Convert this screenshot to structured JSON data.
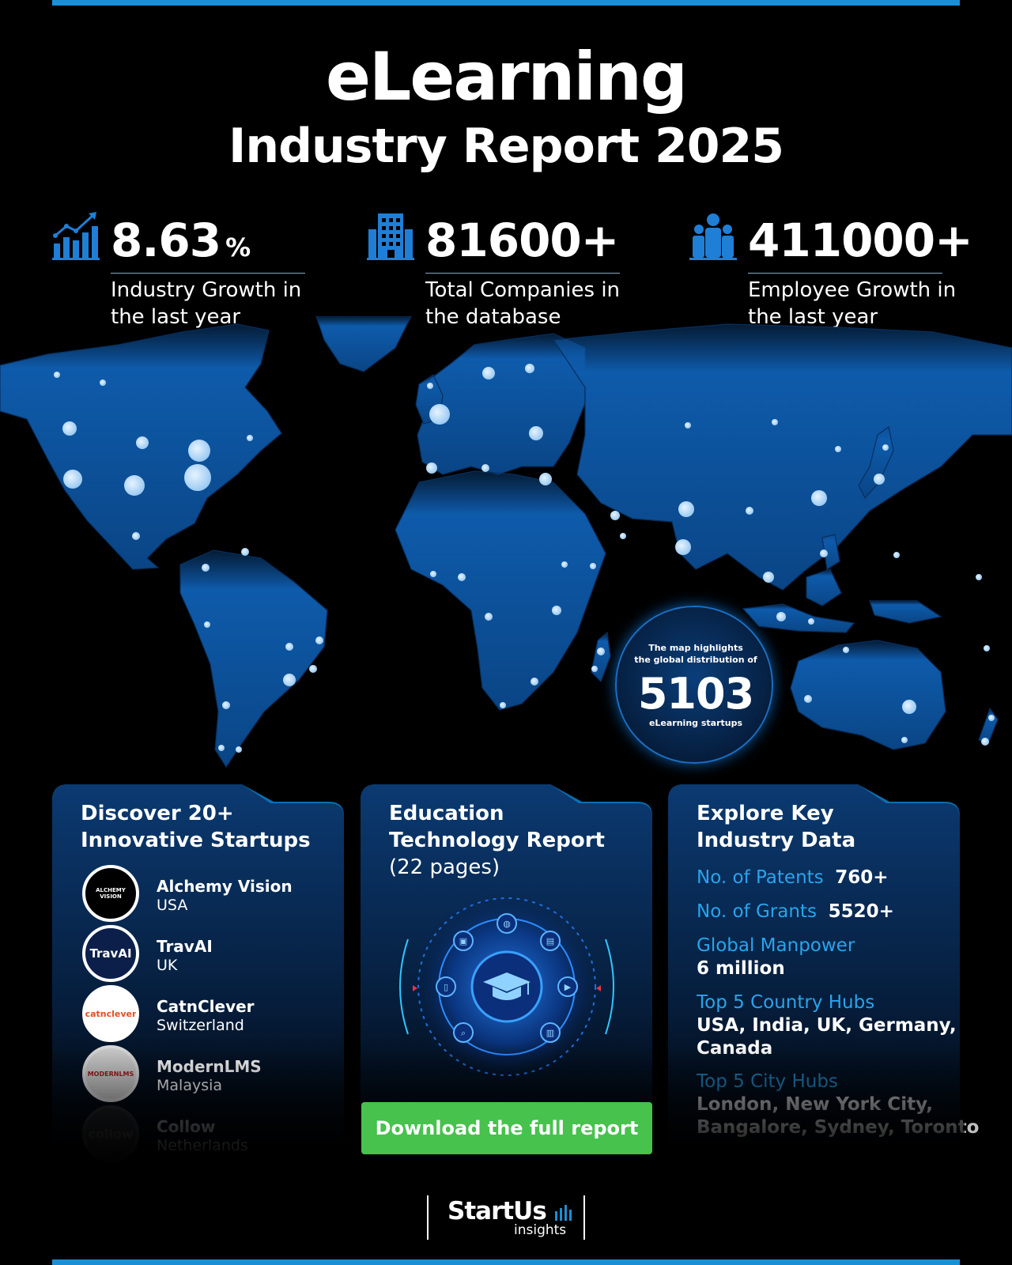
{
  "header": {
    "title": "eLearning",
    "subtitle": "Industry Report 2025"
  },
  "stats": [
    {
      "value": "8.63",
      "unit": "%",
      "desc_line1": "Industry Growth in",
      "desc_line2": "the last year",
      "icon": "growth-chart-icon"
    },
    {
      "value": "81600+",
      "unit": "",
      "desc_line1": "Total Companies in",
      "desc_line2": "the database",
      "icon": "building-icon"
    },
    {
      "value": "411000+",
      "unit": "",
      "desc_line1": "Employee Growth in",
      "desc_line2": "the last year",
      "icon": "people-icon"
    }
  ],
  "map_badge": {
    "pre_line1": "The map highlights",
    "pre_line2": "the global distribution of",
    "count": "5103",
    "post": "eLearning startups"
  },
  "startups_card": {
    "heading_line1": "Discover 20+",
    "heading_line2": "Innovative Startups",
    "items": [
      {
        "name": "Alchemy Vision",
        "location": "USA",
        "logo_text": "ALCHEMY VISION"
      },
      {
        "name": "TravAI",
        "location": "UK",
        "logo_text": "TravAI"
      },
      {
        "name": "CatnClever",
        "location": "Switzerland",
        "logo_text": "catnclever"
      },
      {
        "name": "ModernLMS",
        "location": "Malaysia",
        "logo_text": "MODERNLMS"
      },
      {
        "name": "Collow",
        "location": "Netherlands",
        "logo_text": "collow"
      }
    ]
  },
  "report_card": {
    "heading_line1": "Education",
    "heading_line2": "Technology Report",
    "pages": "(22 pages)",
    "cta": "Download the full report"
  },
  "data_card": {
    "heading_line1": "Explore Key",
    "heading_line2": "Industry Data",
    "patents_label": "No. of Patents",
    "patents_value": "760+",
    "grants_label": "No. of Grants",
    "grants_value": "5520+",
    "manpower_label": "Global Manpower",
    "manpower_value": "6 million",
    "country_label": "Top 5 Country Hubs",
    "country_value_line1": "USA, India, UK, Germany,",
    "country_value_line2": "Canada",
    "city_label": "Top 5 City Hubs",
    "city_value_line1": "London, New York City,",
    "city_value_line2": "Bangalore, Sydney, Toronto"
  },
  "brand": {
    "name": "StartUs",
    "sub": "insights"
  },
  "colors": {
    "accent_blue": "#1a8fd8",
    "label_blue": "#29a4ec",
    "cta_green": "#46c24d",
    "map_blue": "#0b4f9c"
  }
}
